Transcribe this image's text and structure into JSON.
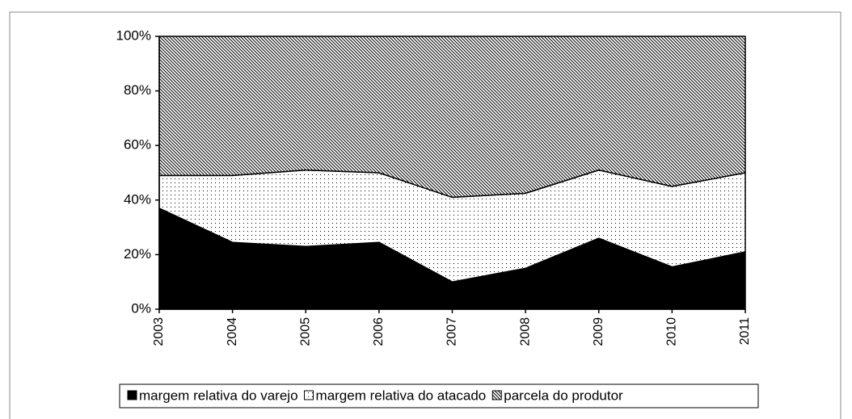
{
  "chart_data": {
    "type": "stacked-area",
    "categories": [
      "2003",
      "2004",
      "2005",
      "2006",
      "2007",
      "2008",
      "2009",
      "2010",
      "2011"
    ],
    "series": [
      {
        "name": "margem relativa do varejo",
        "color": "#000000",
        "pattern": "solid",
        "values": [
          37,
          24.5,
          23,
          24.5,
          10,
          15,
          26,
          15.5,
          21
        ]
      },
      {
        "name": "margem relativa do atacado",
        "color": "#000000",
        "pattern": "dots",
        "values": [
          12,
          24.5,
          28,
          25.5,
          31,
          27.5,
          25,
          29.5,
          29
        ]
      },
      {
        "name": "parcela do produtor",
        "color": "#000000",
        "pattern": "hatch",
        "values": [
          51,
          51,
          49,
          50,
          59,
          57.5,
          49,
          55,
          50
        ]
      }
    ],
    "ylim": [
      0,
      100
    ],
    "yticks": [
      {
        "value": 0,
        "label": "0%"
      },
      {
        "value": 20,
        "label": "20%"
      },
      {
        "value": 40,
        "label": "40%"
      },
      {
        "value": 60,
        "label": "60%"
      },
      {
        "value": 80,
        "label": "80%"
      },
      {
        "value": 100,
        "label": "100%"
      }
    ],
    "legend": "bottom"
  }
}
